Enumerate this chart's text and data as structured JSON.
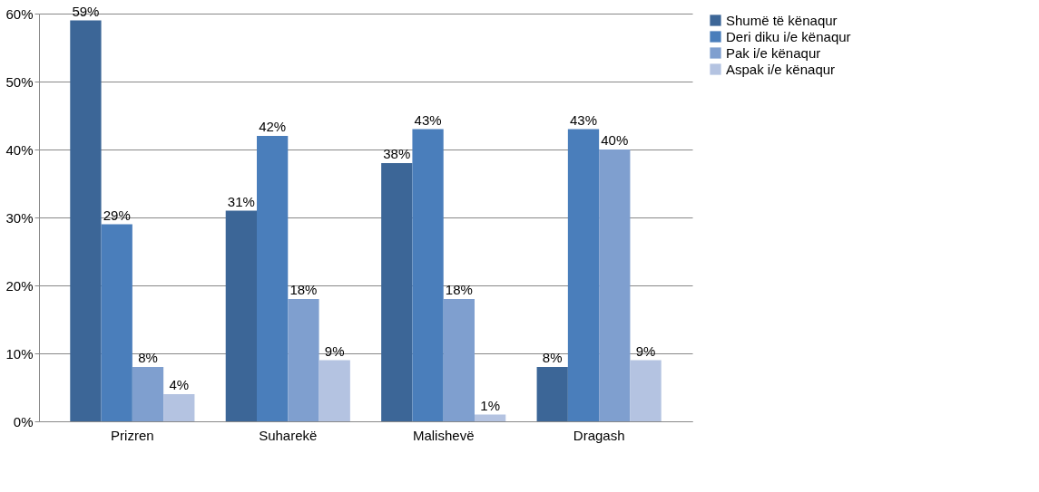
{
  "chart_data": {
    "type": "bar",
    "categories": [
      "Prizren",
      "Suharekë",
      "Malishevë",
      "Dragash"
    ],
    "series": [
      {
        "name": "Shumë të kënaqur",
        "color": "#3c6697",
        "values": [
          59,
          31,
          38,
          8
        ],
        "value_labels": [
          "59%",
          "31%",
          "38%",
          "8%"
        ]
      },
      {
        "name": "Deri diku i/e kënaqur",
        "color": "#4a7ebb",
        "values": [
          29,
          42,
          43,
          43
        ],
        "value_labels": [
          "29%",
          "42%",
          "43%",
          "43%"
        ]
      },
      {
        "name": "Pak i/e kënaqur",
        "color": "#7f9fcf",
        "values": [
          8,
          18,
          18,
          40
        ],
        "value_labels": [
          "8%",
          "18%",
          "18%",
          "40%"
        ]
      },
      {
        "name": "Aspak i/e kënaqur",
        "color": "#b4c3e1",
        "values": [
          4,
          9,
          1,
          9
        ],
        "value_labels": [
          "4%",
          "9%",
          "1%",
          "9%"
        ]
      }
    ],
    "ylim": [
      0,
      60
    ],
    "yticks": [
      {
        "value": 0,
        "label": "0%"
      },
      {
        "value": 10,
        "label": "10%"
      },
      {
        "value": 20,
        "label": "20%"
      },
      {
        "value": 30,
        "label": "30%"
      },
      {
        "value": 40,
        "label": "40%"
      },
      {
        "value": 50,
        "label": "50%"
      },
      {
        "value": 60,
        "label": "60%"
      }
    ],
    "grid": "y",
    "legend": "right"
  }
}
